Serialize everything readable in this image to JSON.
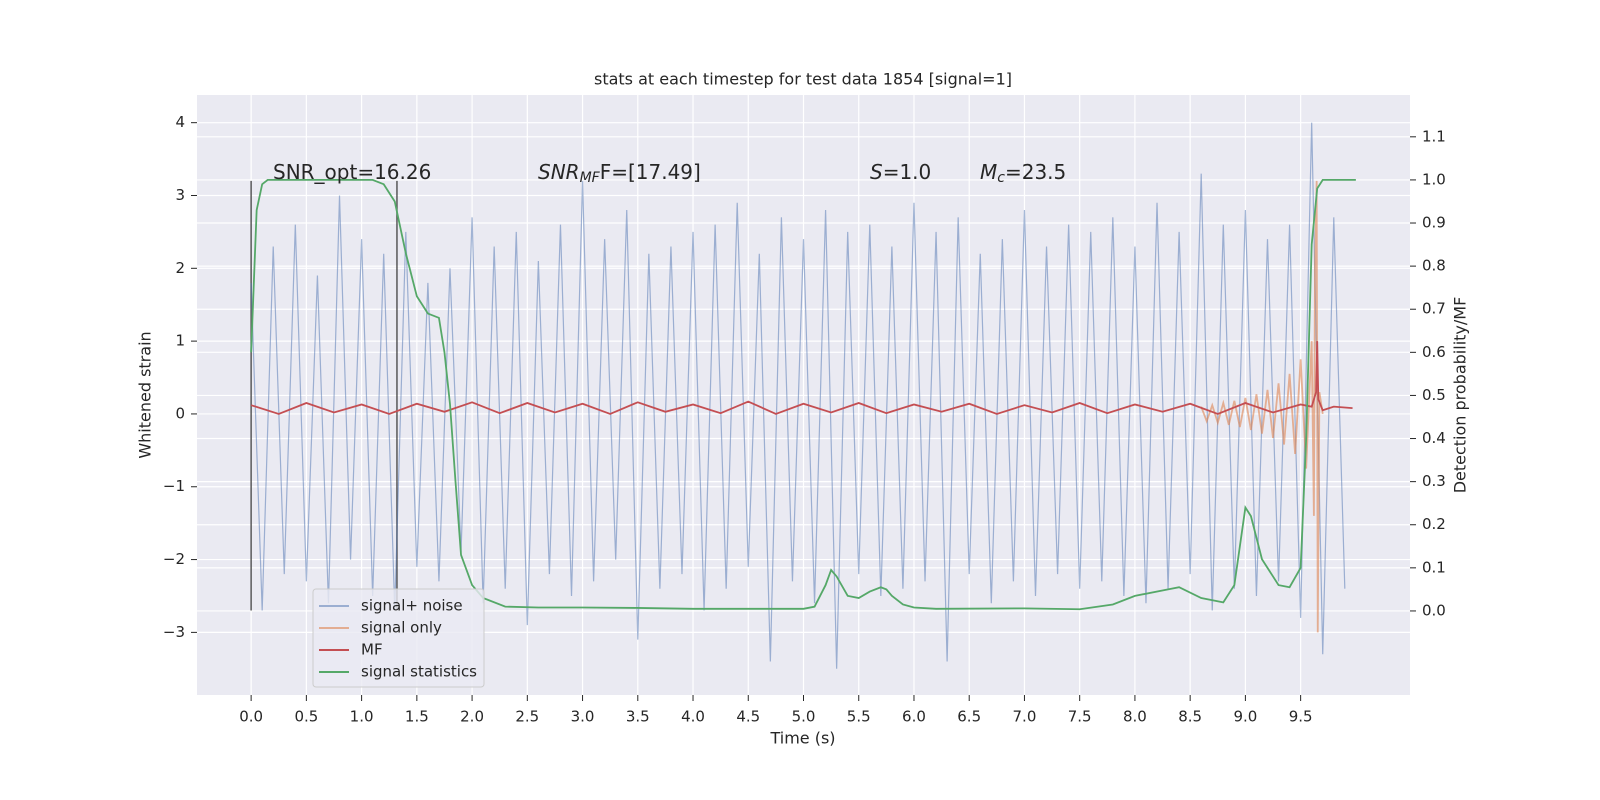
{
  "chart_data": {
    "type": "line",
    "title": "stats at each timestep for test data 1854 [signal=1]",
    "xlabel": "Time (s)",
    "ylabel": "Whitened strain",
    "y2label": "Detection probability/MF",
    "xlim": [
      -0.49,
      10.49
    ],
    "ylim": [
      -3.86,
      4.38
    ],
    "y2lim": [
      -0.195,
      1.197
    ],
    "xticks": [
      {
        "value": 0,
        "label": "0.0"
      },
      0.5,
      {
        "value": 1,
        "label": "1.0"
      },
      1.5,
      {
        "value": 2,
        "label": "2.0"
      },
      2.5,
      {
        "value": 3,
        "label": "3.0"
      },
      3.5,
      {
        "value": 4,
        "label": "4.0"
      },
      4.5,
      {
        "value": 5,
        "label": "5.0"
      },
      5.5,
      {
        "value": 6,
        "label": "6.0"
      },
      6.5,
      {
        "value": 7,
        "label": "7.0"
      },
      7.5,
      {
        "value": 8,
        "label": "8.0"
      },
      8.5,
      {
        "value": 9,
        "label": "9.0"
      },
      9.5
    ],
    "yticks": [
      {
        "value": -3,
        "label": "−3"
      },
      {
        "value": -2,
        "label": "−2"
      },
      {
        "value": -1,
        "label": "−1"
      },
      0,
      1,
      2,
      3,
      4
    ],
    "y2ticks": [
      {
        "value": 0,
        "label": "0.0"
      },
      0.1,
      0.2,
      0.3,
      0.4,
      0.5,
      0.6,
      0.7,
      0.8,
      0.9,
      {
        "value": 1,
        "label": "1.0"
      },
      1.1
    ],
    "grid": true,
    "legend": "lower left",
    "vlines": {
      "x": [
        0,
        1.32
      ],
      "ymin": -2.7,
      "ymax": 3.2,
      "color": "#333333"
    },
    "annotations": [
      {
        "main": "SNR_opt=16.26",
        "italic": false
      },
      {
        "main": "SNR",
        "sub": "MF",
        "rest": "F=[17.49]",
        "italic": true
      },
      {
        "main": "S",
        "rest": "=1.0",
        "italic": true
      },
      {
        "main": "M",
        "sub": "c",
        "rest": "=23.5",
        "italic": true
      }
    ],
    "series": [
      {
        "name": "signal+ noise",
        "color": "#4c72b0",
        "alpha": 0.5,
        "x": [
          0.0,
          0.1,
          0.2,
          0.3,
          0.4,
          0.5,
          0.6,
          0.7,
          0.8,
          0.9,
          1.0,
          1.1,
          1.2,
          1.3,
          1.4,
          1.5,
          1.6,
          1.7,
          1.8,
          1.9,
          2.0,
          2.1,
          2.2,
          2.3,
          2.4,
          2.5,
          2.6,
          2.7,
          2.8,
          2.9,
          3.0,
          3.1,
          3.2,
          3.3,
          3.4,
          3.5,
          3.6,
          3.7,
          3.8,
          3.9,
          4.0,
          4.1,
          4.2,
          4.3,
          4.4,
          4.5,
          4.6,
          4.7,
          4.8,
          4.9,
          5.0,
          5.1,
          5.2,
          5.3,
          5.4,
          5.5,
          5.6,
          5.7,
          5.8,
          5.9,
          6.0,
          6.1,
          6.2,
          6.3,
          6.4,
          6.5,
          6.6,
          6.7,
          6.8,
          6.9,
          7.0,
          7.1,
          7.2,
          7.3,
          7.4,
          7.5,
          7.6,
          7.7,
          7.8,
          7.9,
          8.0,
          8.1,
          8.2,
          8.3,
          8.4,
          8.5,
          8.6,
          8.7,
          8.8,
          8.9,
          9.0,
          9.1,
          9.2,
          9.3,
          9.4,
          9.5,
          9.6,
          9.7,
          9.8,
          9.9
        ],
        "values": [
          1.8,
          -2.7,
          2.3,
          -2.2,
          2.6,
          -2.3,
          1.9,
          -2.6,
          3.0,
          -2.0,
          2.4,
          -2.5,
          2.2,
          -2.7,
          2.5,
          -2.1,
          1.8,
          -2.3,
          2.0,
          -1.9,
          2.7,
          -2.6,
          2.3,
          -2.4,
          2.5,
          -2.9,
          2.1,
          -2.2,
          2.6,
          -2.5,
          3.2,
          -2.3,
          2.4,
          -2.0,
          2.8,
          -3.1,
          2.2,
          -2.4,
          2.3,
          -2.2,
          2.5,
          -2.7,
          2.6,
          -2.4,
          2.9,
          -2.1,
          2.2,
          -3.4,
          2.7,
          -2.3,
          2.4,
          -2.6,
          2.8,
          -3.5,
          2.5,
          -2.2,
          2.6,
          -2.5,
          2.3,
          -2.4,
          2.9,
          -2.3,
          2.5,
          -3.4,
          2.7,
          -2.2,
          2.2,
          -2.6,
          2.4,
          -2.3,
          2.8,
          -2.5,
          2.3,
          -2.2,
          2.6,
          -2.4,
          2.5,
          -2.3,
          2.7,
          -2.5,
          2.3,
          -2.6,
          2.9,
          -2.4,
          2.5,
          -2.2,
          3.3,
          -2.7,
          2.6,
          -2.4,
          2.8,
          -2.5,
          2.4,
          -2.3,
          2.6,
          -2.8,
          4.0,
          -3.3,
          2.7,
          -2.4
        ]
      },
      {
        "name": "signal only",
        "color": "#dd8452",
        "alpha": 0.6,
        "x": [
          8.6,
          8.65,
          8.7,
          8.75,
          8.8,
          8.85,
          8.9,
          8.95,
          9.0,
          9.05,
          9.1,
          9.15,
          9.2,
          9.25,
          9.3,
          9.35,
          9.4,
          9.45,
          9.5,
          9.55,
          9.6,
          9.62,
          9.63,
          9.645,
          9.655,
          9.67,
          9.7
        ],
        "values": [
          0.1,
          -0.1,
          0.12,
          -0.12,
          0.15,
          -0.15,
          0.18,
          -0.18,
          0.22,
          -0.22,
          0.27,
          -0.27,
          0.33,
          -0.33,
          0.42,
          -0.42,
          0.55,
          -0.55,
          0.75,
          -0.75,
          1.0,
          -1.4,
          2.0,
          3.2,
          -3.0,
          0.3,
          0.0
        ]
      },
      {
        "name": "MF",
        "color": "#c44e52",
        "alpha": 1,
        "x": [
          0,
          0.25,
          0.5,
          0.75,
          1,
          1.25,
          1.5,
          1.75,
          2,
          2.25,
          2.5,
          2.75,
          3,
          3.25,
          3.5,
          3.75,
          4,
          4.25,
          4.5,
          4.75,
          5,
          5.25,
          5.5,
          5.75,
          6,
          6.25,
          6.5,
          6.75,
          7,
          7.25,
          7.5,
          7.75,
          8,
          8.25,
          8.5,
          8.75,
          9,
          9.25,
          9.5,
          9.6,
          9.64,
          9.65,
          9.66,
          9.7,
          9.8,
          9.97
        ],
        "values": [
          0.12,
          0.0,
          0.15,
          0.02,
          0.13,
          0.0,
          0.14,
          0.03,
          0.16,
          0.01,
          0.15,
          0.02,
          0.14,
          0.0,
          0.16,
          0.03,
          0.13,
          0.01,
          0.17,
          0.0,
          0.14,
          0.02,
          0.15,
          0.01,
          0.13,
          0.03,
          0.14,
          0.0,
          0.12,
          0.02,
          0.15,
          0.01,
          0.13,
          0.03,
          0.14,
          0.0,
          0.15,
          0.02,
          0.13,
          0.1,
          0.3,
          1.0,
          0.2,
          0.05,
          0.1,
          0.08
        ]
      },
      {
        "name": "signal statistics",
        "color": "#55a868",
        "alpha": 1,
        "axis": "y2",
        "x": [
          0,
          0.05,
          0.1,
          0.15,
          0.3,
          0.5,
          1.0,
          1.1,
          1.2,
          1.3,
          1.4,
          1.5,
          1.6,
          1.7,
          1.75,
          1.8,
          1.85,
          1.9,
          2.0,
          2.1,
          2.3,
          2.6,
          3.0,
          3.5,
          4.0,
          4.5,
          5.0,
          5.1,
          5.2,
          5.25,
          5.3,
          5.4,
          5.5,
          5.6,
          5.7,
          5.75,
          5.8,
          5.9,
          6.0,
          6.2,
          7.0,
          7.5,
          7.8,
          8.0,
          8.3,
          8.4,
          8.6,
          8.8,
          8.9,
          9.0,
          9.05,
          9.15,
          9.3,
          9.4,
          9.5,
          9.55,
          9.6,
          9.65,
          9.7,
          9.8,
          10.0
        ],
        "values": [
          0.6,
          0.93,
          0.99,
          1.0,
          1.0,
          1.0,
          1.0,
          1.0,
          0.99,
          0.95,
          0.83,
          0.73,
          0.69,
          0.68,
          0.6,
          0.48,
          0.3,
          0.13,
          0.06,
          0.03,
          0.01,
          0.008,
          0.008,
          0.007,
          0.005,
          0.005,
          0.005,
          0.01,
          0.06,
          0.095,
          0.08,
          0.035,
          0.03,
          0.045,
          0.055,
          0.05,
          0.035,
          0.015,
          0.008,
          0.005,
          0.006,
          0.004,
          0.015,
          0.035,
          0.05,
          0.055,
          0.03,
          0.02,
          0.06,
          0.24,
          0.22,
          0.12,
          0.06,
          0.055,
          0.1,
          0.4,
          0.85,
          0.98,
          1.0,
          1.0,
          1.0
        ]
      }
    ]
  }
}
